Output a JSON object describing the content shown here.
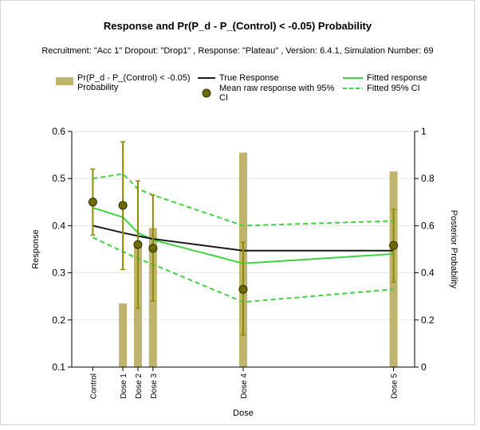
{
  "chart_data": {
    "type": "bar+line",
    "title": "Response and Pr(P_d - P_(Control) < -0.05) Probability",
    "subtitle": "Recruitment: \"Acc 1\" Dropout: \"Drop1\" , Response: \"Plateau\" , Version: 6.4.1, Simulation Number: 69",
    "xlabel": "Dose",
    "ylabel": "Response",
    "y2label": "Posterior Probability",
    "ylim": [
      0.1,
      0.6
    ],
    "y2lim": [
      0,
      1
    ],
    "yticks": [
      "0.1",
      "0.2",
      "0.3",
      "0.4",
      "0.5",
      "0.6"
    ],
    "y2ticks": [
      "0",
      "0.2",
      "0.4",
      "0.6",
      "0.8",
      "1"
    ],
    "categories": [
      "Control",
      "Dose 1",
      "Dose 2",
      "Dose 3",
      "Dose 4",
      "Dose 5"
    ],
    "x": [
      0,
      1,
      1.5,
      2,
      5,
      10
    ],
    "legend": {
      "probability": "Pr(P_d - P_(Control) < -0.05) Probability",
      "true_response": "True Response",
      "mean_raw": "Mean raw response with 95% CI",
      "fitted": "Fitted response",
      "fitted_ci": "Fitted 95% CI"
    },
    "probability": [
      null,
      0.27,
      0.52,
      0.59,
      0.91,
      0.83
    ],
    "true_response": [
      0.4,
      0.385,
      0.378,
      0.372,
      0.347,
      0.347
    ],
    "fitted_response": [
      0.438,
      0.418,
      0.385,
      0.37,
      0.32,
      0.34
    ],
    "fitted_upper": [
      0.5,
      0.51,
      0.478,
      0.465,
      0.4,
      0.41
    ],
    "fitted_lower": [
      0.375,
      0.345,
      0.33,
      0.318,
      0.238,
      0.265
    ],
    "mean_raw": [
      0.45,
      0.443,
      0.36,
      0.352,
      0.265,
      0.358
    ],
    "mean_raw_upper": [
      0.52,
      0.578,
      0.495,
      0.465,
      0.365,
      0.435
    ],
    "mean_raw_lower": [
      0.38,
      0.307,
      0.225,
      0.24,
      0.168,
      0.28
    ],
    "colors": {
      "bars": "#bfb46e",
      "true_response": "#1a1a1a",
      "fitted": "#3fd43f",
      "mean_marker": "#6b6b00",
      "ci_bar": "#8c8c00"
    }
  }
}
